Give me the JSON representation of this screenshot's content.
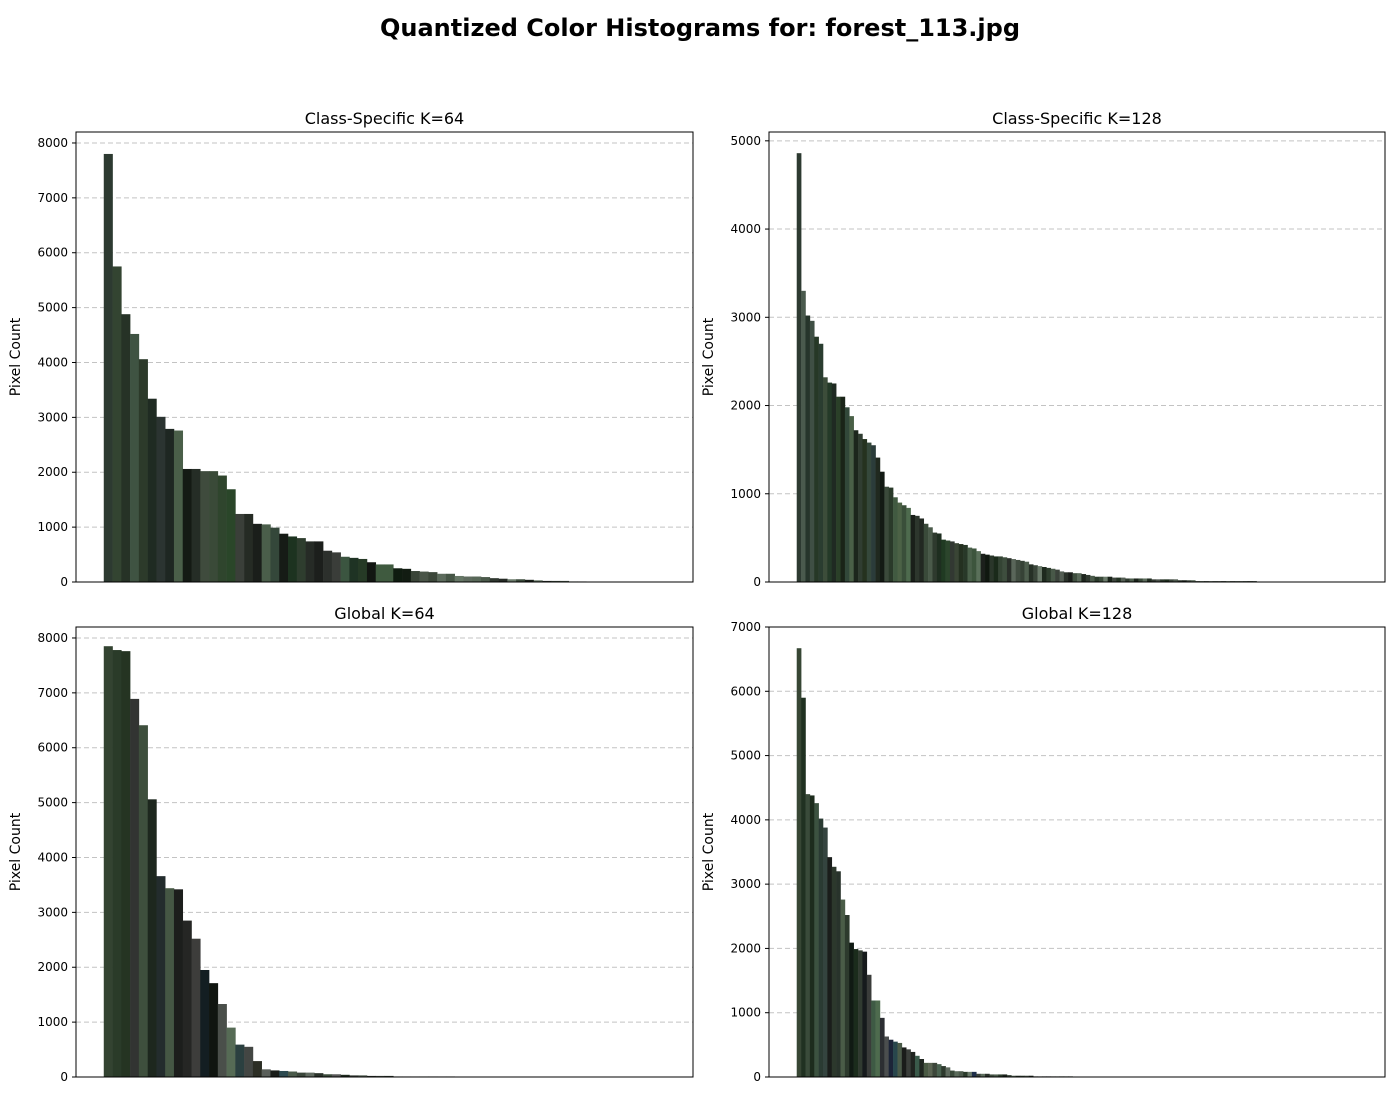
{
  "figure": {
    "title": "Quantized Color Histograms for: forest_113.jpg"
  },
  "chart_data": [
    {
      "type": "bar",
      "title": "Class-Specific K=64",
      "xlabel": "",
      "ylabel": "Pixel Count",
      "ylim": [
        0,
        8200
      ],
      "yticks": [
        0,
        1000,
        2000,
        3000,
        4000,
        5000,
        6000,
        7000,
        8000
      ],
      "grid": "y-dashed",
      "values": [
        7800,
        5750,
        4880,
        4520,
        4060,
        3340,
        3010,
        2790,
        2760,
        2060,
        2060,
        2020,
        2020,
        1940,
        1690,
        1240,
        1240,
        1060,
        1050,
        990,
        880,
        830,
        800,
        740,
        740,
        570,
        540,
        460,
        440,
        420,
        360,
        320,
        320,
        250,
        240,
        200,
        190,
        180,
        150,
        150,
        110,
        100,
        100,
        90,
        70,
        60,
        50,
        50,
        40,
        30,
        20,
        20,
        20,
        10,
        10,
        0,
        0,
        0,
        0,
        0,
        0,
        0,
        0,
        0
      ],
      "colors": [
        "#2d3a31",
        "#334431",
        "#263226",
        "#3f5342",
        "#2c3a2a",
        "#1f2b22",
        "#2b3431",
        "#1e2722",
        "#4a5f49",
        "#141a14",
        "#252d26",
        "#3f4b3d",
        "#3a4a38",
        "#2f452d",
        "#2a4629",
        "#3a3f39",
        "#252b24",
        "#1a1e1a",
        "#4a5e4a",
        "#34473a",
        "#161b16",
        "#1d3320",
        "#2e3d2e",
        "#262b26",
        "#1c1f1c",
        "#2c302c",
        "#3a3d39",
        "#3b5540",
        "#1f3324",
        "#263a26",
        "#121612",
        "#3f5a3f",
        "#3f5a3f",
        "#0f1c10",
        "#121c12",
        "#3a4538",
        "#4a5548",
        "#3c473a",
        "#5c6b5c",
        "#465646",
        "#667766",
        "#5e6b5e",
        "#586858",
        "#4b5a4b",
        "#303830",
        "#252a25",
        "#6a7a6a",
        "#3a4a3a",
        "#1a201a",
        "#556655",
        "#2a302a",
        "#3d4a3d",
        "#4a564a",
        "#222a22",
        "#333833",
        "#2a342a",
        "#2a342a",
        "#2a342a",
        "#2a342a",
        "#2a342a",
        "#2a342a",
        "#2a342a",
        "#2a342a",
        "#2a342a"
      ]
    },
    {
      "type": "bar",
      "title": "Class-Specific K=128",
      "xlabel": "",
      "ylabel": "Pixel Count",
      "ylim": [
        0,
        5100
      ],
      "yticks": [
        0,
        1000,
        2000,
        3000,
        4000,
        5000
      ],
      "grid": "y-dashed",
      "values": [
        4860,
        3300,
        3020,
        2960,
        2780,
        2700,
        2320,
        2260,
        2250,
        2100,
        2100,
        1980,
        1880,
        1720,
        1680,
        1620,
        1580,
        1550,
        1410,
        1250,
        1080,
        1070,
        960,
        900,
        870,
        840,
        760,
        750,
        720,
        660,
        620,
        560,
        550,
        480,
        470,
        460,
        440,
        430,
        420,
        390,
        380,
        350,
        320,
        310,
        300,
        290,
        290,
        280,
        270,
        260,
        250,
        240,
        230,
        200,
        190,
        180,
        170,
        160,
        150,
        140,
        120,
        110,
        110,
        100,
        100,
        90,
        80,
        70,
        60,
        60,
        60,
        60,
        50,
        50,
        50,
        40,
        40,
        40,
        40,
        40,
        40,
        30,
        30,
        30,
        30,
        30,
        30,
        20,
        20,
        20,
        20,
        10,
        10,
        10,
        10,
        10,
        10,
        10,
        10,
        10,
        10,
        10,
        10,
        10,
        10,
        0,
        0,
        0,
        0,
        0,
        0,
        0,
        0,
        0,
        0,
        0,
        0,
        0,
        0,
        0,
        0,
        0,
        0,
        0,
        0,
        0,
        0,
        0
      ],
      "colors": [
        "#2d3a31",
        "#4a5a4d",
        "#26352b",
        "#3f4f44",
        "#263826",
        "#2a3d30",
        "#3c4d3a",
        "#243a28",
        "#1f2a22",
        "#2a4028",
        "#1a2418",
        "#32483a",
        "#4a6047",
        "#1c261c",
        "#303d31",
        "#25321f",
        "#35483b",
        "#2b3c3a",
        "#20291f",
        "#131a14",
        "#3b4a3b",
        "#2a3a2a",
        "#415a41",
        "#4c6246",
        "#3a4f3a",
        "#4e6b4e",
        "#1a1f1a",
        "#2d362d",
        "#222822",
        "#3a4a3a",
        "#4a5a4a",
        "#2e3a2e",
        "#1e2e20",
        "#203a22",
        "#2c452c",
        "#323832",
        "#3a4535",
        "#243020",
        "#283828",
        "#4a604a",
        "#3d553d",
        "#5a705a",
        "#1c201c",
        "#101810",
        "#2a362a",
        "#1a2a1a",
        "#344434",
        "#3e4e3e",
        "#2a302a",
        "#5a665a",
        "#404c40",
        "#364236",
        "#4e5e4e",
        "#263026",
        "#3a463a",
        "#6a7a6a",
        "#1e2a1e",
        "#2e3e2e",
        "#485848",
        "#3a423a",
        "#545e54",
        "#2a322a",
        "#1a1e1a",
        "#405040",
        "#5a6a5a",
        "#1e261e",
        "#303a30",
        "#4a5a4a",
        "#2a3a2a",
        "#3a4a3a",
        "#6b7b6b",
        "#1a241a",
        "#3e463e",
        "#243424",
        "#555f55",
        "#2f3b2f",
        "#4d5d4d",
        "#1b231b",
        "#394939",
        "#5c6c5c",
        "#222e22",
        "#343c34",
        "#4a524a",
        "#2a362a",
        "#1e2e1e",
        "#3a443a",
        "#4e5a4e",
        "#2c342c",
        "#1c221c",
        "#404a40",
        "#506050",
        "#283228",
        "#3c4c3c",
        "#262e26",
        "#4c544c",
        "#2d392d",
        "#3b433b",
        "#1f271f",
        "#4f5f4f",
        "#2b332b",
        "#36463b",
        "#414b41",
        "#2a3a2e",
        "#1d251d",
        "#2a342a",
        "#2a342a",
        "#2a342a",
        "#2a342a",
        "#2a342a",
        "#2a342a",
        "#2a342a",
        "#2a342a",
        "#2a342a",
        "#2a342a",
        "#2a342a",
        "#2a342a",
        "#2a342a",
        "#2a342a",
        "#2a342a",
        "#2a342a",
        "#2a342a",
        "#2a342a",
        "#2a342a",
        "#2a342a",
        "#2a342a",
        "#2a342a",
        "#2a342a",
        "#2a342a"
      ]
    },
    {
      "type": "bar",
      "title": "Global K=64",
      "xlabel": "",
      "ylabel": "Pixel Count",
      "ylim": [
        0,
        8200
      ],
      "yticks": [
        0,
        1000,
        2000,
        3000,
        4000,
        5000,
        6000,
        7000,
        8000
      ],
      "grid": "y-dashed",
      "values": [
        7850,
        7780,
        7760,
        6890,
        6410,
        5060,
        3660,
        3440,
        3420,
        2850,
        2520,
        1950,
        1710,
        1330,
        900,
        590,
        550,
        290,
        140,
        120,
        110,
        100,
        80,
        80,
        70,
        50,
        50,
        40,
        30,
        30,
        20,
        20,
        20,
        10,
        10,
        10,
        10,
        10,
        10,
        10,
        0,
        0,
        0,
        0,
        0,
        0,
        0,
        0,
        0,
        0,
        0,
        0,
        0,
        0,
        0,
        0,
        0,
        0,
        0,
        0,
        0,
        0,
        0,
        0
      ],
      "colors": [
        "#334331",
        "#2a3b29",
        "#253422",
        "#323432",
        "#3e4f3d",
        "#1d271e",
        "#232c2d",
        "#455744",
        "#1c1e1c",
        "#252624",
        "#3d3d3b",
        "#131e22",
        "#101510",
        "#4a4f4a",
        "#566b55",
        "#2b4040",
        "#434643",
        "#2c2e25",
        "#5a5f5a",
        "#1a1e1a",
        "#2c4a50",
        "#4a5a4a",
        "#3a463a",
        "#606a60",
        "#2a322a",
        "#3c4c3c",
        "#5a5a5a",
        "#1e2a1e",
        "#3a403a",
        "#4e5a4e",
        "#2a302a",
        "#404840",
        "#303830",
        "#202820",
        "#384438",
        "#4a524a",
        "#2c342c",
        "#1c241c",
        "#3e4a3e",
        "#2a342a",
        "#2a342a",
        "#2a342a",
        "#2a342a",
        "#2a342a",
        "#2a342a",
        "#2a342a",
        "#2a342a",
        "#2a342a",
        "#2a342a",
        "#2a342a",
        "#2a342a",
        "#2a342a",
        "#2a342a",
        "#2a342a",
        "#2a342a",
        "#2a342a",
        "#2a342a",
        "#2a342a",
        "#2a342a",
        "#2a342a",
        "#2a342a",
        "#2a342a",
        "#2a342a",
        "#2a342a"
      ]
    },
    {
      "type": "bar",
      "title": "Global K=128",
      "xlabel": "",
      "ylabel": "Pixel Count",
      "ylim": [
        0,
        7000
      ],
      "yticks": [
        0,
        1000,
        2000,
        3000,
        4000,
        5000,
        6000,
        7000
      ],
      "grid": "y-dashed",
      "values": [
        6670,
        5900,
        4400,
        4380,
        4260,
        4020,
        3880,
        3420,
        3270,
        3200,
        2760,
        2520,
        2090,
        1990,
        1970,
        1950,
        1590,
        1190,
        1190,
        920,
        630,
        580,
        550,
        530,
        460,
        430,
        390,
        330,
        280,
        220,
        220,
        220,
        200,
        170,
        150,
        100,
        90,
        90,
        80,
        80,
        80,
        50,
        50,
        50,
        40,
        40,
        40,
        40,
        30,
        20,
        20,
        20,
        20,
        20,
        10,
        10,
        10,
        10,
        10,
        10,
        10,
        10,
        10,
        0,
        0,
        0,
        0,
        0,
        0,
        0,
        0,
        0,
        0,
        0,
        0,
        0,
        0,
        0,
        0,
        0,
        0,
        0,
        0,
        0,
        0,
        0,
        0,
        0,
        0,
        0,
        0,
        0,
        0,
        0,
        0,
        0,
        0,
        0,
        0,
        0,
        0,
        0,
        0,
        0,
        0,
        0,
        0,
        0,
        0,
        0,
        0,
        0,
        0,
        0,
        0,
        0,
        0,
        0,
        0,
        0,
        0,
        0,
        0,
        0,
        0,
        0,
        0,
        0
      ],
      "colors": [
        "#374634",
        "#203121",
        "#3a4b3a",
        "#1d2c1d",
        "#3c5240",
        "#2a3b33",
        "#34443f",
        "#1a1d1b",
        "#2c382c",
        "#28332b",
        "#4a5c47",
        "#2d3a2d",
        "#101a13",
        "#1b2c1c",
        "#303a30",
        "#161a1c",
        "#3a3c3a",
        "#3e5a44",
        "#4e6b4e",
        "#2c2e32",
        "#4b4e4e",
        "#1c2438",
        "#28464c",
        "#4a5a48",
        "#1a1c1a",
        "#3a3e3a",
        "#202420",
        "#3a5a4a",
        "#202620",
        "#4a5a44",
        "#5a6452",
        "#3c463a",
        "#4a6250",
        "#2e3a2e",
        "#5e6a5e",
        "#3a4a3a",
        "#5a6a5a",
        "#4c5a4c",
        "#2a3a2a",
        "#6a7a6a",
        "#1e2e4a",
        "#3a423a",
        "#5e6e5e",
        "#2a302a",
        "#404e40",
        "#4e5e4e",
        "#2c3c2c",
        "#1a221a",
        "#3e4a3e",
        "#546454",
        "#283428",
        "#344234",
        "#4a564a",
        "#1e261e",
        "#3a403a",
        "#5a625a",
        "#2a3630",
        "#22282a",
        "#404a40",
        "#506050",
        "#263026",
        "#3c4a3c",
        "#2e382e",
        "#2a342a",
        "#2a342a",
        "#2a342a",
        "#2a342a",
        "#2a342a",
        "#2a342a",
        "#2a342a",
        "#2a342a",
        "#2a342a",
        "#2a342a",
        "#2a342a",
        "#2a342a",
        "#2a342a",
        "#2a342a",
        "#2a342a",
        "#2a342a",
        "#2a342a",
        "#2a342a",
        "#2a342a",
        "#2a342a",
        "#2a342a",
        "#2a342a",
        "#2a342a",
        "#2a342a",
        "#2a342a",
        "#2a342a",
        "#2a342a",
        "#2a342a",
        "#2a342a",
        "#2a342a",
        "#2a342a",
        "#2a342a",
        "#2a342a",
        "#2a342a",
        "#2a342a",
        "#2a342a",
        "#2a342a",
        "#2a342a",
        "#2a342a",
        "#2a342a",
        "#2a342a",
        "#2a342a",
        "#2a342a",
        "#2a342a",
        "#2a342a",
        "#2a342a",
        "#2a342a",
        "#2a342a",
        "#2a342a",
        "#2a342a",
        "#2a342a",
        "#2a342a",
        "#2a342a",
        "#2a342a",
        "#2a342a",
        "#2a342a",
        "#2a342a",
        "#2a342a",
        "#2a342a",
        "#2a342a",
        "#2a342a",
        "#2a342a",
        "#2a342a",
        "#2a342a",
        "#2a342a"
      ]
    }
  ]
}
